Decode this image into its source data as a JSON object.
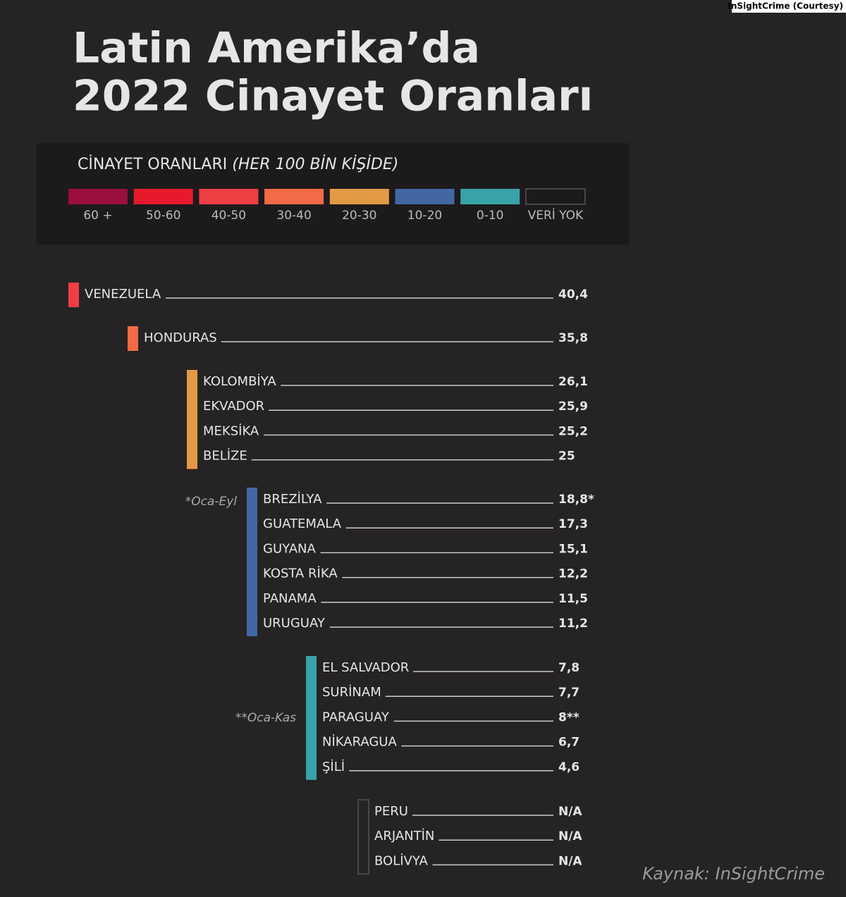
{
  "credit": "InSightCrime (Courtesy)",
  "title": [
    "Latin Amerika’da",
    "2022 Cinayet Oranları"
  ],
  "legend": {
    "title": "CİNAYET ORANLARI",
    "title_note": "(HER 100 BİN KİŞİDE)",
    "items": [
      {
        "label": "60 +",
        "color": "#9a0f3c"
      },
      {
        "label": "50-60",
        "color": "#e8192c"
      },
      {
        "label": "40-50",
        "color": "#ef3f45"
      },
      {
        "label": "30-40",
        "color": "#f26a46"
      },
      {
        "label": "20-30",
        "color": "#e39a44"
      },
      {
        "label": "10-20",
        "color": "#4168a3"
      },
      {
        "label": "0-10",
        "color": "#38a3a8"
      },
      {
        "label": "VERİ YOK",
        "color": null
      }
    ]
  },
  "groups": [
    {
      "color": "#ef3f45",
      "rows": [
        {
          "name": "VENEZUELA",
          "value": "40,4"
        }
      ]
    },
    {
      "color": "#f26a46",
      "rows": [
        {
          "name": "HONDURAS",
          "value": "35,8"
        }
      ]
    },
    {
      "color": "#e39a44",
      "rows": [
        {
          "name": "KOLOMBİYA",
          "value": "26,1"
        },
        {
          "name": "EKVADOR",
          "value": "25,9"
        },
        {
          "name": "MEKSİKA",
          "value": "25,2"
        },
        {
          "name": "BELİZE",
          "value": "25"
        }
      ]
    },
    {
      "color": "#4168a3",
      "note": "*Oca-Eyl",
      "rows": [
        {
          "name": "BREZİLYA",
          "value": "18,8*"
        },
        {
          "name": "GUATEMALA",
          "value": "17,3"
        },
        {
          "name": "GUYANA",
          "value": "15,1"
        },
        {
          "name": "KOSTA RİKA",
          "value": "12,2"
        },
        {
          "name": "PANAMA",
          "value": "11,5"
        },
        {
          "name": "URUGUAY",
          "value": "11,2"
        }
      ]
    },
    {
      "color": "#38a3a8",
      "note": "**Oca-Kas",
      "rows": [
        {
          "name": "EL SALVADOR",
          "value": "7,8"
        },
        {
          "name": "SURİNAM",
          "value": "7,7"
        },
        {
          "name": "PARAGUAY",
          "value": "8**"
        },
        {
          "name": "NİKARAGUA",
          "value": "6,7"
        },
        {
          "name": "ŞİLİ",
          "value": "4,6"
        }
      ]
    },
    {
      "color": null,
      "rows": [
        {
          "name": "PERU",
          "value": "N/A"
        },
        {
          "name": "ARJANTİN",
          "value": "N/A"
        },
        {
          "name": "BOLİVYA",
          "value": "N/A"
        }
      ]
    }
  ],
  "source": "Kaynak: InSightCrime"
}
